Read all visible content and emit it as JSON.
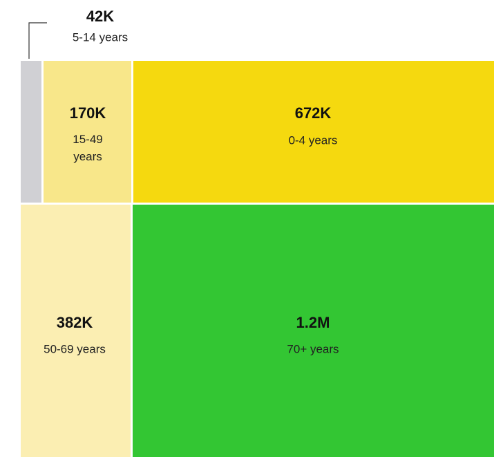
{
  "chart_data": {
    "type": "treemap",
    "categories": [
      "5-14 years",
      "15-49 years",
      "0-4 years",
      "50-69 years",
      "70+ years"
    ],
    "values": [
      42000,
      170000,
      672000,
      382000,
      1200000
    ],
    "value_labels": [
      "42K",
      "170K",
      "672K",
      "382K",
      "1.2M"
    ],
    "colors": [
      "#d0d0d4",
      "#f8e78a",
      "#f5d90f",
      "#fbeeb2",
      "#33c633"
    ]
  }
}
